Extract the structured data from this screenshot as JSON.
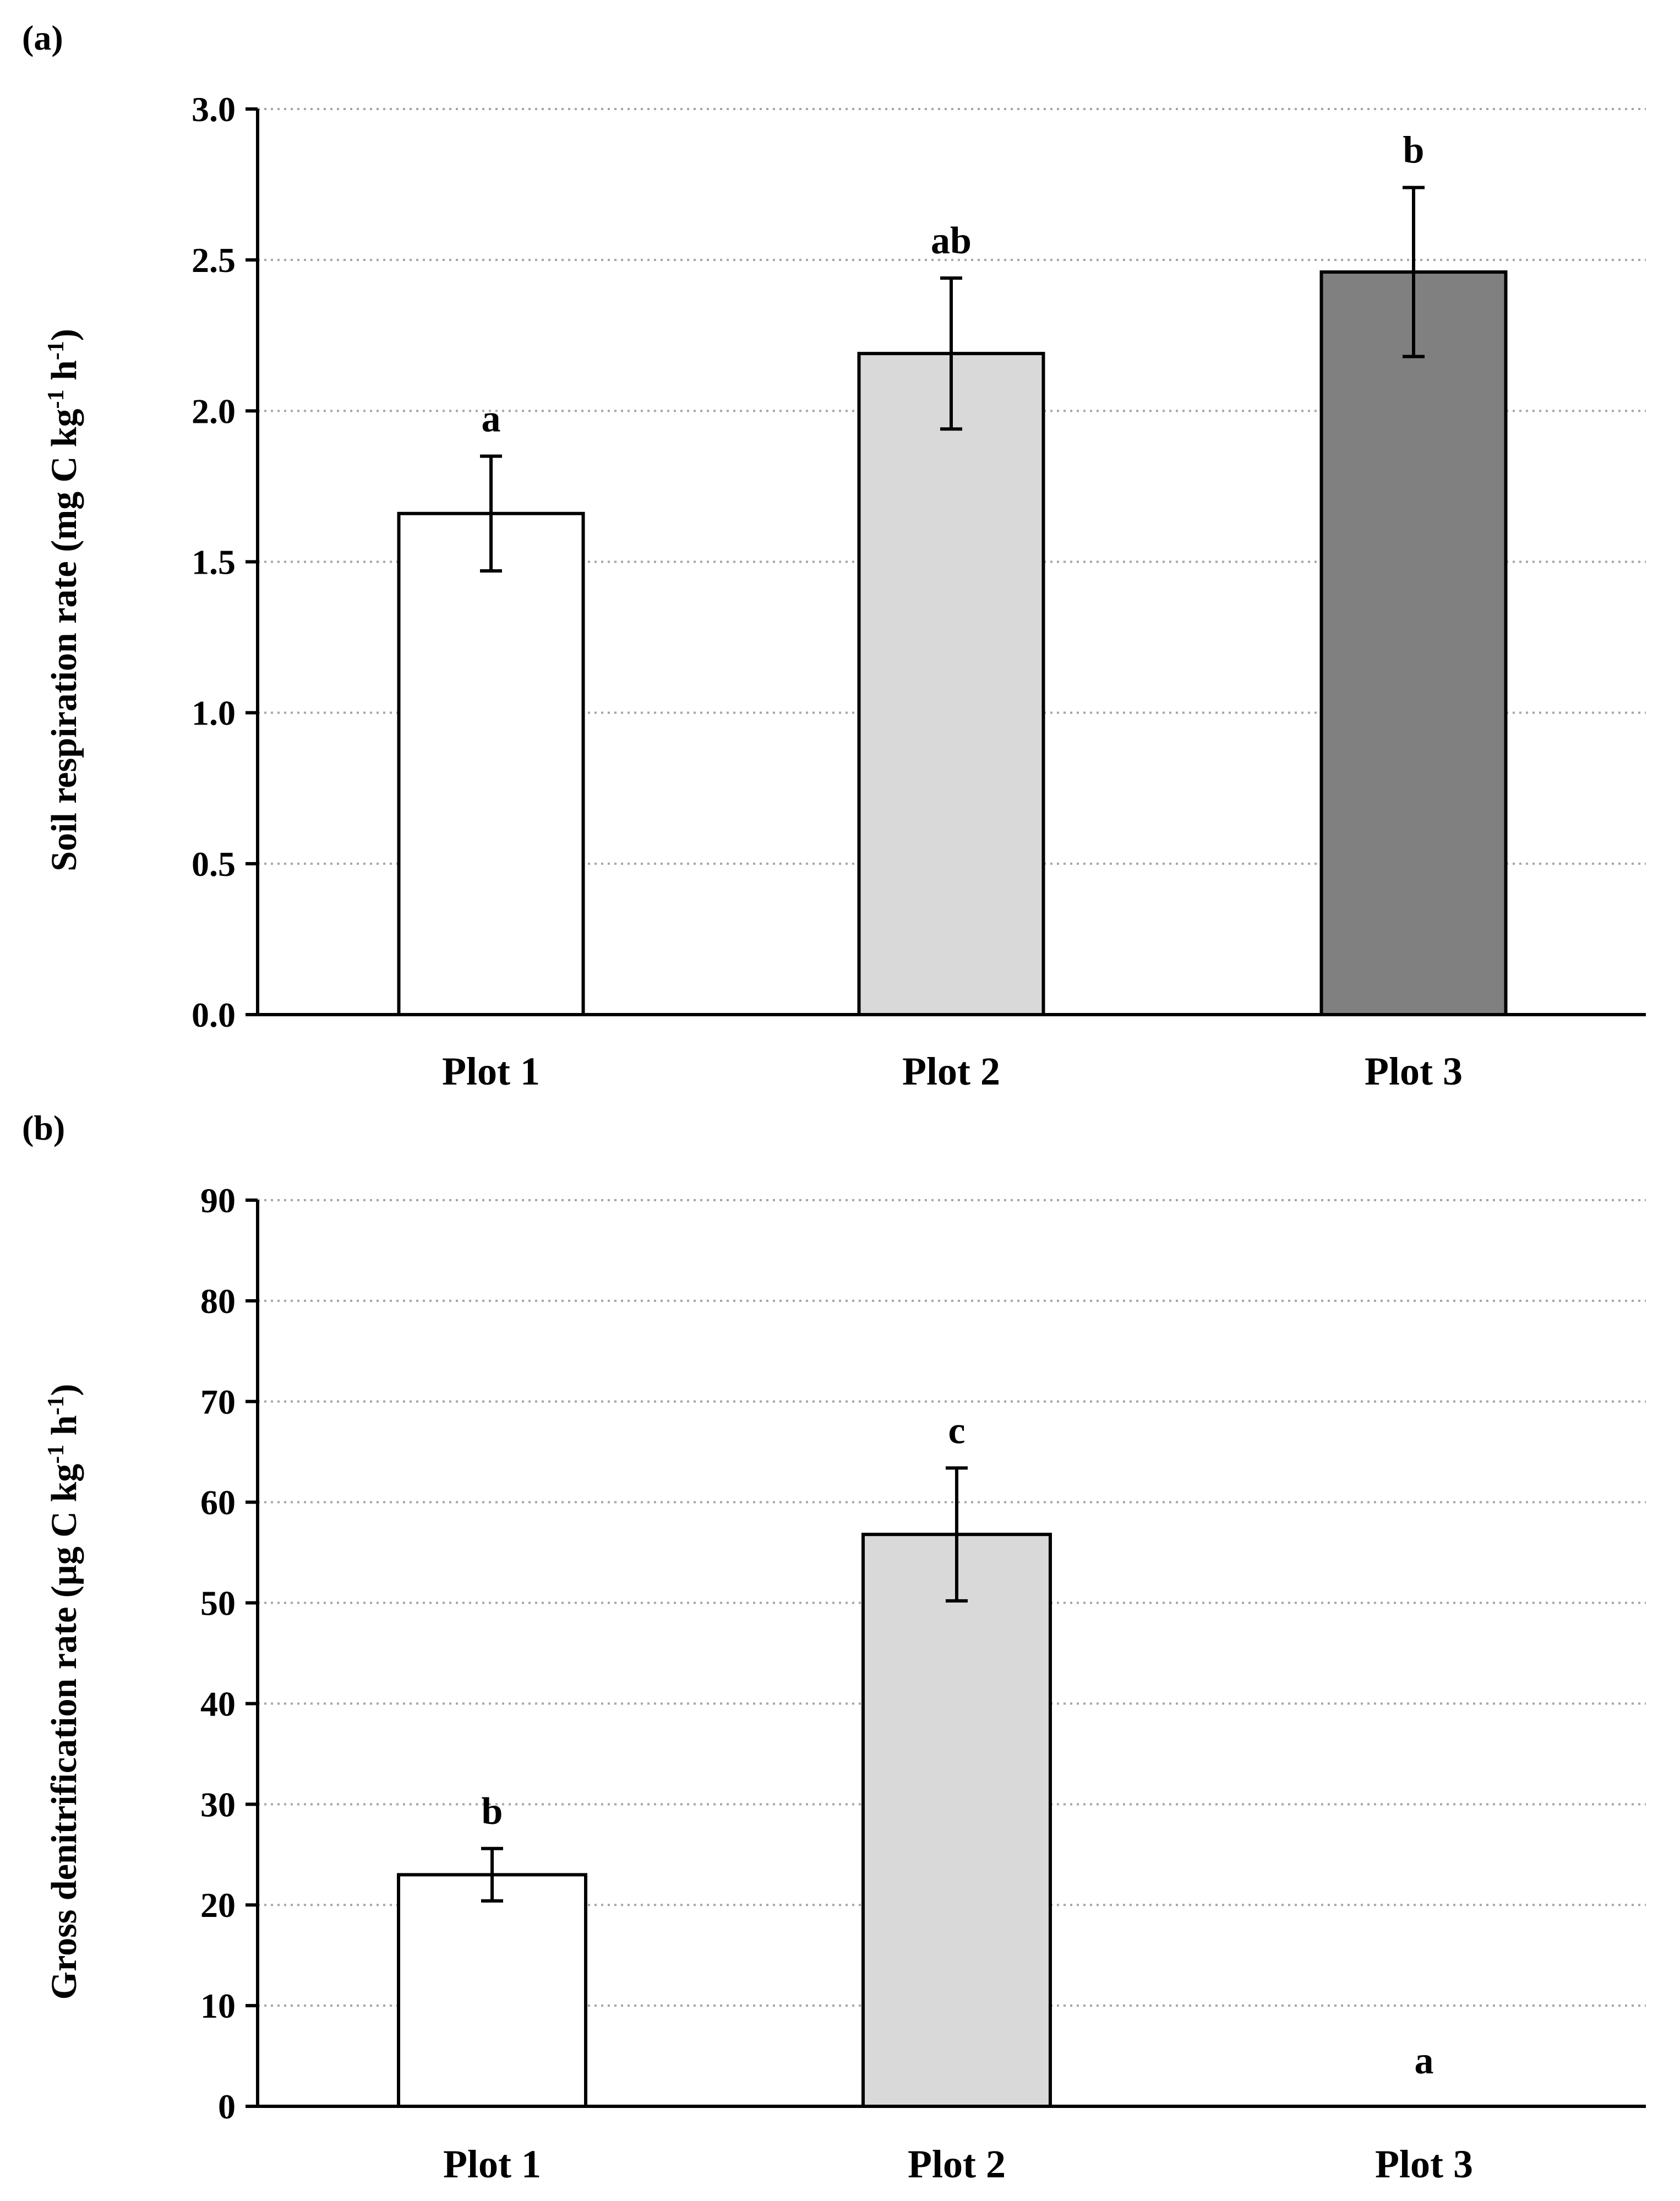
{
  "chart_data": [
    {
      "type": "bar",
      "panel_label": "(a)",
      "title": "",
      "xlabel": "",
      "ylabel": "Soil respiration rate (mg C kg",
      "ylabel_sup1": "-1",
      "ylabel_mid": " h",
      "ylabel_sup2": "-1",
      "ylabel_end": ")",
      "ylim": [
        0,
        3.0
      ],
      "yticks": [
        "0.0",
        "0.5",
        "1.0",
        "1.5",
        "2.0",
        "2.5",
        "3.0"
      ],
      "ytick_values": [
        0,
        0.5,
        1.0,
        1.5,
        2.0,
        2.5,
        3.0
      ],
      "grid": true,
      "categories": [
        "Plot 1",
        "Plot 2",
        "Plot 3"
      ],
      "values": [
        1.66,
        2.19,
        2.46
      ],
      "errors": [
        0.19,
        0.25,
        0.28
      ],
      "significance": [
        "a",
        "ab",
        "b"
      ],
      "colors": [
        "#ffffff",
        "#d9d9d9",
        "#808080"
      ]
    },
    {
      "type": "bar",
      "panel_label": "(b)",
      "title": "",
      "xlabel": "",
      "ylabel": "Gross denitrification rate (µg C kg",
      "ylabel_sup1": "-1",
      "ylabel_mid": " h",
      "ylabel_sup2": "-1",
      "ylabel_end": ")",
      "ylim": [
        0,
        90
      ],
      "yticks": [
        "0",
        "10",
        "20",
        "30",
        "40",
        "50",
        "60",
        "70",
        "80",
        "90"
      ],
      "ytick_values": [
        0,
        10,
        20,
        30,
        40,
        50,
        60,
        70,
        80,
        90
      ],
      "grid": true,
      "categories": [
        "Plot 1",
        "Plot 2",
        "Plot 3"
      ],
      "values": [
        23.0,
        56.8,
        0
      ],
      "errors": [
        2.6,
        6.6,
        0
      ],
      "significance": [
        "b",
        "c",
        "a"
      ],
      "colors": [
        "#ffffff",
        "#d9d9d9",
        "#808080"
      ]
    }
  ]
}
